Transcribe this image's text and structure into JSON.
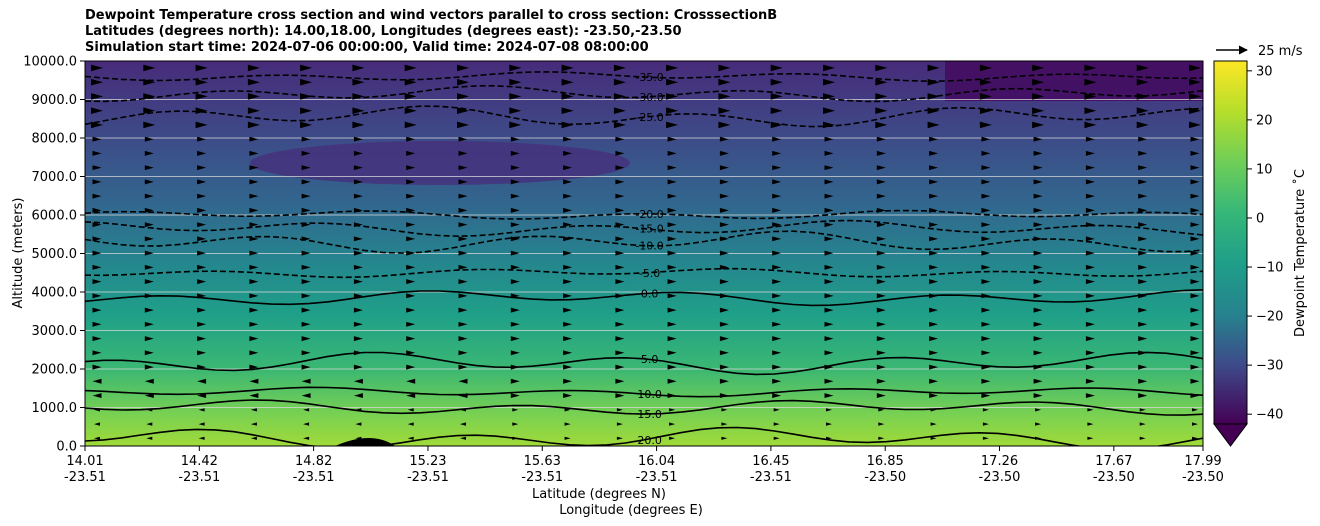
{
  "chart_data": {
    "type": "contour",
    "title_lines": [
      "Dewpoint Temperature cross section and wind vectors parallel to cross section: CrosssectionB",
      "Latitudes (degrees north): 14.00,18.00, Longitudes (degrees east): -23.50,-23.50",
      "Simulation start time: 2024-07-06 00:00:00, Valid time: 2024-07-08 08:00:00"
    ],
    "ylabel": "Altitude (meters)",
    "xlabel_lines": [
      "Latitude (degrees N)",
      "Longitude (degrees E)"
    ],
    "ylim": [
      0,
      10000
    ],
    "y_ticks": [
      "0.0",
      "1000.0",
      "2000.0",
      "3000.0",
      "4000.0",
      "5000.0",
      "6000.0",
      "7000.0",
      "8000.0",
      "9000.0",
      "10000.0"
    ],
    "x_ticks": [
      {
        "lat": "14.01",
        "lon": "-23.51"
      },
      {
        "lat": "14.42",
        "lon": "-23.51"
      },
      {
        "lat": "14.82",
        "lon": "-23.51"
      },
      {
        "lat": "15.23",
        "lon": "-23.51"
      },
      {
        "lat": "15.63",
        "lon": "-23.51"
      },
      {
        "lat": "16.04",
        "lon": "-23.51"
      },
      {
        "lat": "16.45",
        "lon": "-23.51"
      },
      {
        "lat": "16.85",
        "lon": "-23.50"
      },
      {
        "lat": "17.26",
        "lon": "-23.50"
      },
      {
        "lat": "17.67",
        "lon": "-23.50"
      },
      {
        "lat": "17.99",
        "lon": "-23.50"
      }
    ],
    "grid": "horizontal",
    "colorbar": {
      "label": "Dewpoint Temperature ˚C",
      "range": [
        -42,
        32
      ],
      "ticks": [
        "30",
        "20",
        "10",
        "0",
        "−10",
        "−20",
        "−30",
        "−40"
      ],
      "extend": "min",
      "colormap": "viridis"
    },
    "contour_levels": [
      {
        "value": -35,
        "label": "-35.0",
        "altitude": 9600,
        "style": "dashed"
      },
      {
        "value": -30,
        "label": "-30.0",
        "altitude": 9150,
        "style": "dashed"
      },
      {
        "value": -25,
        "label": "-25.0",
        "altitude": 8550,
        "style": "dashed"
      },
      {
        "value": -20,
        "label": "-20.0",
        "altitude": 6000,
        "style": "dashed"
      },
      {
        "value": -15,
        "label": "-15.0",
        "altitude": 5650,
        "style": "dashed"
      },
      {
        "value": -10,
        "label": "-10.0",
        "altitude": 5300,
        "style": "dashed"
      },
      {
        "value": -5,
        "label": "-5.0",
        "altitude": 4500,
        "style": "dashed"
      },
      {
        "value": 0,
        "label": "0.0",
        "altitude": 3850,
        "style": "solid"
      },
      {
        "value": 5,
        "label": "5.0",
        "altitude": 2150,
        "style": "solid"
      },
      {
        "value": 10,
        "label": "10.0",
        "altitude": 1400,
        "style": "solid"
      },
      {
        "value": 15,
        "label": "15.0",
        "altitude": 1000,
        "style": "solid"
      },
      {
        "value": 20,
        "label": "20.0",
        "altitude": 200,
        "style": "solid"
      }
    ],
    "quiver_key": {
      "label": "25 m/s"
    }
  }
}
